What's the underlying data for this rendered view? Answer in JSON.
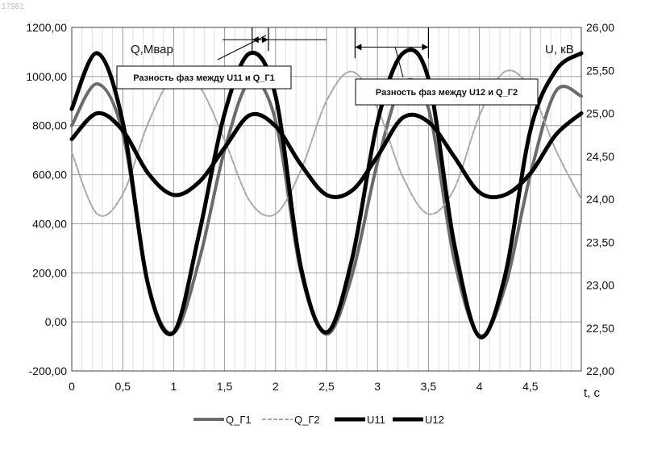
{
  "image_id": "17981",
  "chart_data": {
    "type": "line",
    "title": "",
    "x_label": "t, c",
    "y_left_label": "Q,Мвар",
    "y_right_label": "U, кВ",
    "x_range": [
      0,
      5
    ],
    "y_left_range": [
      -200,
      1200
    ],
    "y_right_range": [
      22,
      26
    ],
    "x_ticks": [
      "0",
      "0,5",
      "1",
      "1,5",
      "2",
      "2,5",
      "3",
      "3,5",
      "4",
      "4,5"
    ],
    "x_tick_values": [
      0,
      0.5,
      1,
      1.5,
      2,
      2.5,
      3,
      3.5,
      4,
      4.5
    ],
    "y_left_ticks": [
      "-200,00",
      "0,00",
      "200,00",
      "400,00",
      "600,00",
      "800,00",
      "1000,00",
      "1200,00"
    ],
    "y_left_tick_values": [
      -200,
      0,
      200,
      400,
      600,
      800,
      1000,
      1200
    ],
    "y_right_ticks": [
      "22,00",
      "22,50",
      "23,00",
      "23,50",
      "24,00",
      "24,50",
      "25,00",
      "25,50",
      "26,00"
    ],
    "y_right_tick_values": [
      22,
      22.5,
      23,
      23.5,
      24,
      24.5,
      25,
      25.5,
      26
    ],
    "grid": true,
    "legend_position": "bottom",
    "series": [
      {
        "name": "Q_Г1",
        "axis": "left",
        "stroke": "#6b6b6b",
        "width": 4,
        "x": [
          0,
          0.25,
          0.5,
          0.75,
          1,
          1.25,
          1.5,
          1.75,
          2,
          2.25,
          2.5,
          2.75,
          3,
          3.25,
          3.5,
          3.75,
          4,
          4.25,
          4.5,
          4.75,
          5
        ],
        "y": [
          800,
          970,
          770,
          150,
          -45,
          250,
          700,
          980,
          820,
          200,
          -50,
          190,
          650,
          970,
          870,
          260,
          -55,
          140,
          600,
          940,
          920
        ]
      },
      {
        "name": "Q_Г2",
        "axis": "left",
        "stroke": "#a8a8a8",
        "width": 2,
        "x": [
          0,
          0.25,
          0.5,
          0.75,
          1,
          1.25,
          1.5,
          1.75,
          2,
          2.25,
          2.5,
          2.75,
          3,
          3.25,
          3.5,
          3.75,
          4,
          4.25,
          4.5,
          4.75,
          5
        ],
        "y": [
          690,
          440,
          520,
          810,
          1000,
          960,
          740,
          490,
          440,
          620,
          900,
          1020,
          870,
          590,
          440,
          540,
          840,
          1020,
          950,
          700,
          500
        ]
      },
      {
        "name": "U11",
        "axis": "right",
        "stroke": "#000000",
        "width": 5,
        "x": [
          0,
          0.25,
          0.5,
          0.75,
          1,
          1.25,
          1.5,
          1.75,
          2,
          2.25,
          2.5,
          2.75,
          3,
          3.25,
          3.5,
          3.75,
          4,
          4.25,
          4.5,
          4.75,
          5
        ],
        "y": [
          25.05,
          25.7,
          24.9,
          23.0,
          22.45,
          23.6,
          25.0,
          25.7,
          25.2,
          23.2,
          22.45,
          23.3,
          24.9,
          25.7,
          25.4,
          23.5,
          22.4,
          23.1,
          24.8,
          25.5,
          25.7
        ]
      },
      {
        "name": "U12",
        "axis": "right",
        "stroke": "#000000",
        "width": 5,
        "x": [
          0,
          0.25,
          0.5,
          0.75,
          1,
          1.25,
          1.5,
          1.75,
          2,
          2.25,
          2.5,
          2.75,
          3,
          3.25,
          3.5,
          3.75,
          4,
          4.25,
          4.5,
          4.75,
          5
        ],
        "y": [
          24.7,
          25.0,
          24.8,
          24.3,
          24.05,
          24.2,
          24.6,
          24.98,
          24.85,
          24.4,
          24.05,
          24.1,
          24.5,
          24.95,
          24.9,
          24.5,
          24.08,
          24.05,
          24.3,
          24.75,
          25.0
        ]
      }
    ],
    "annotations": [
      {
        "text": "Разность фаз между U11 и Q_Г1",
        "marker_x": [
          1.77,
          1.93
        ],
        "marker_line_x": [
          1.48,
          2.5
        ],
        "marker_y": 1150
      },
      {
        "text": "Разность фаз между U12 и Q_Г2",
        "marker_x": [
          2.78,
          3.5
        ],
        "marker_line_x": [
          2.78,
          3.5
        ],
        "marker_y": 1120
      }
    ]
  }
}
